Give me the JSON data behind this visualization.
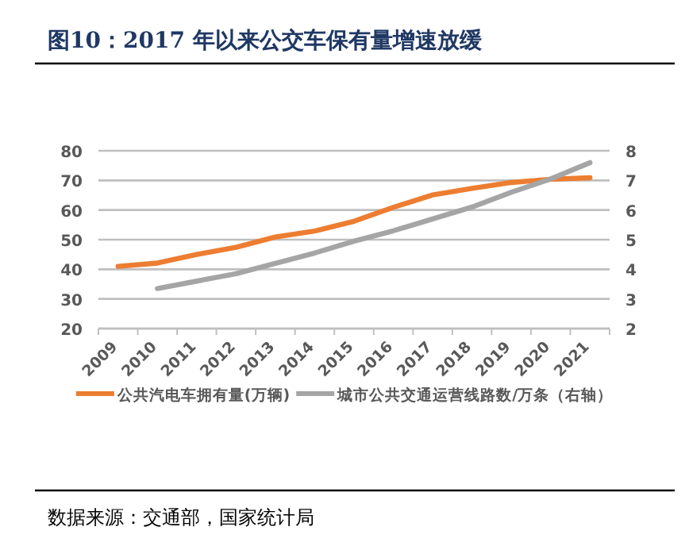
{
  "chart_data": {
    "type": "line",
    "title": "图10：2017 年以来公交车保有量增速放缓",
    "categories": [
      "2009",
      "2010",
      "2011",
      "2012",
      "2013",
      "2014",
      "2015",
      "2016",
      "2017",
      "2018",
      "2019",
      "2020",
      "2021"
    ],
    "series": [
      {
        "name": "公共汽电车拥有量(万辆)",
        "color": "#ed7d31",
        "values": [
          41.0,
          42.1,
          45.0,
          47.4,
          50.9,
          52.9,
          56.2,
          60.9,
          65.1,
          67.3,
          69.3,
          70.4,
          70.9
        ]
      },
      {
        "name": "城市公共交通运营线路数/万条（右轴）",
        "color": "#a5a5a5",
        "axis": "y2",
        "values": [
          null,
          3.35,
          3.6,
          3.85,
          4.2,
          4.55,
          4.95,
          5.3,
          5.7,
          6.1,
          6.6,
          7.05,
          7.6
        ]
      }
    ],
    "ylim": [
      20,
      80
    ],
    "yticks": [
      20,
      30,
      40,
      50,
      60,
      70,
      80
    ],
    "y2lim": [
      2,
      8
    ],
    "y2ticks": [
      2,
      3,
      4,
      5,
      6,
      7,
      8
    ],
    "grid": "y",
    "legend": "bottom",
    "marker": "none",
    "line_style": "solid",
    "annotations": [
      "数据来源：交通部，国家统计局"
    ]
  }
}
